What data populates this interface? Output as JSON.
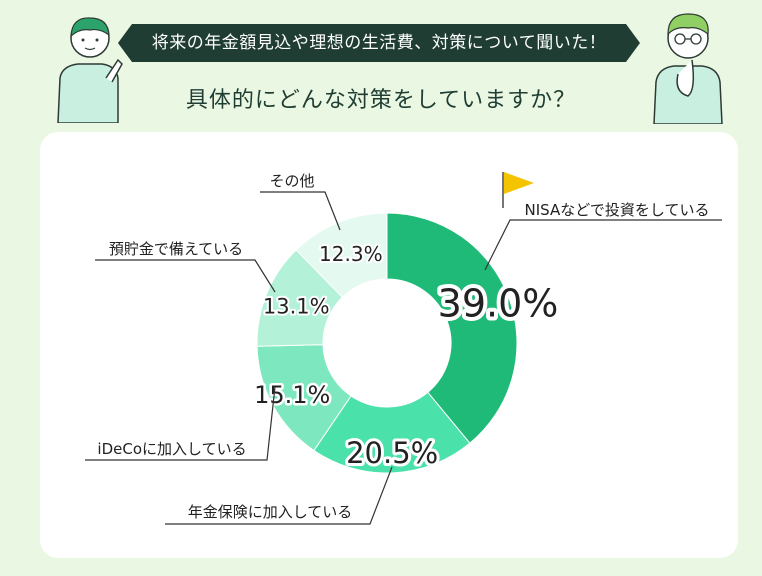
{
  "header": {
    "banner_text": "将来の年金額見込や理想の生活費、対策について聞いた！",
    "question": "具体的にどんな対策をしていますか？"
  },
  "colors": {
    "background": "#eaf7e2",
    "banner": "#1f3d33",
    "flag": "#f4c400"
  },
  "chart_data": {
    "type": "pie",
    "donut": true,
    "categories": [
      "NISAなどで投資をしている",
      "年金保険に加入している",
      "iDeCoに加入している",
      "預貯金で備えている",
      "その他"
    ],
    "values": [
      39.0,
      20.5,
      15.1,
      13.1,
      12.3
    ],
    "value_labels": [
      "39.0%",
      "20.5%",
      "15.1%",
      "13.1%",
      "12.3%"
    ],
    "colors": [
      "#1fba77",
      "#4be1aa",
      "#7de8c0",
      "#b3f1d9",
      "#e4faf0"
    ],
    "highlight": "NISAなどで投資をしている"
  }
}
